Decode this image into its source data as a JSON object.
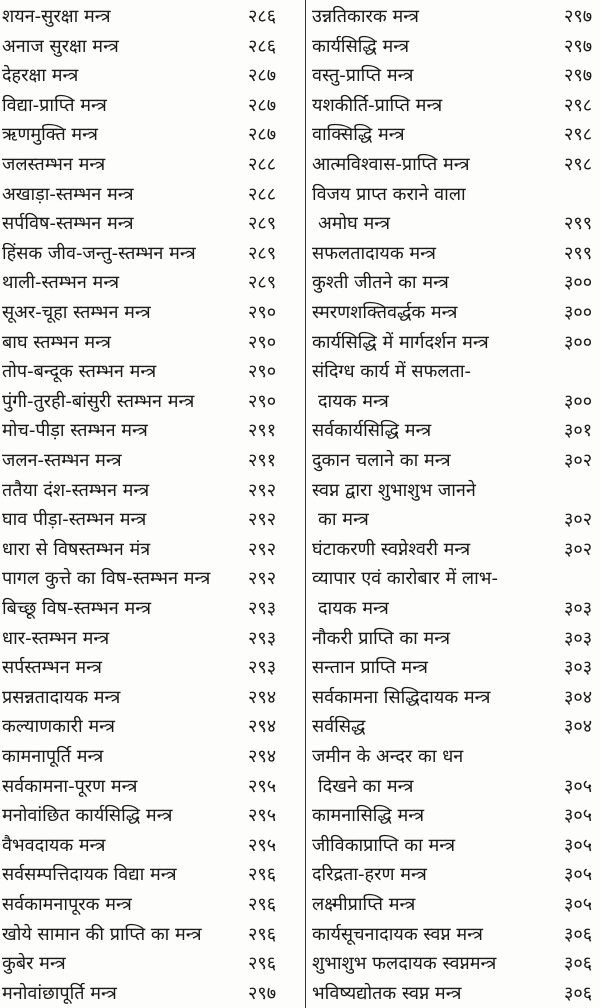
{
  "rows": [
    {
      "left": {
        "text": "शयन-सुरक्षा मन्त्र",
        "page": "२८६"
      },
      "right": {
        "text": "उन्नतिकारक मन्त्र",
        "page": "२९७"
      }
    },
    {
      "left": {
        "text": "अनाज सुरक्षा मन्त्र",
        "page": "२८६"
      },
      "right": {
        "text": "कार्यसिद्धि मन्त्र",
        "page": "२९७"
      }
    },
    {
      "left": {
        "text": "देहरक्षा मन्त्र",
        "page": "२८७"
      },
      "right": {
        "text": "वस्तु-प्राप्ति मन्त्र",
        "page": "२९७"
      }
    },
    {
      "left": {
        "text": "विद्या-प्राप्ति मन्त्र",
        "page": "२८७"
      },
      "right": {
        "text": "यशकीर्ति-प्राप्ति मन्त्र",
        "page": "२९८"
      }
    },
    {
      "left": {
        "text": "ऋणमुक्ति मन्त्र",
        "page": "२८७"
      },
      "right": {
        "text": "वाक्सिद्धि मन्त्र",
        "page": "२९८"
      }
    },
    {
      "left": {
        "text": "जलस्तम्भन मन्त्र",
        "page": "२८८"
      },
      "right": {
        "text": "आत्मविश्वास-प्राप्ति मन्त्र",
        "page": "२९८"
      }
    },
    {
      "left": {
        "text": "अखाड़ा-स्तम्भन मन्त्र",
        "page": "२८८"
      },
      "right": {
        "text": "विजय प्राप्त कराने वाला",
        "page": ""
      }
    },
    {
      "left": {
        "text": "सर्पविष-स्तम्भन मन्त्र",
        "page": "२८९"
      },
      "right": {
        "text": "अमोघ मन्त्र",
        "page": "२९९",
        "cont": true
      }
    },
    {
      "left": {
        "text": "हिंसक जीव-जन्तु-स्तम्भन मन्त्र",
        "page": "२८९"
      },
      "right": {
        "text": "सफलतादायक मन्त्र",
        "page": "२९९"
      }
    },
    {
      "left": {
        "text": "थाली-स्तम्भन मन्त्र",
        "page": "२८९"
      },
      "right": {
        "text": "कुश्ती जीतने का मन्त्र",
        "page": "३००"
      }
    },
    {
      "left": {
        "text": "सूअर-चूहा स्तम्भन मन्त्र",
        "page": "२९०"
      },
      "right": {
        "text": "स्मरणशक्तिवर्द्धक मन्त्र",
        "page": "३००"
      }
    },
    {
      "left": {
        "text": "बाघ स्तम्भन मन्त्र",
        "page": "२९०"
      },
      "right": {
        "text": "कार्यसिद्धि में मार्गदर्शन मन्त्र",
        "page": "३००"
      }
    },
    {
      "left": {
        "text": "तोप-बन्दूक स्तम्भन मन्त्र",
        "page": "२९०"
      },
      "right": {
        "text": "संदिग्ध कार्य में सफलता-",
        "page": ""
      }
    },
    {
      "left": {
        "text": "पुंगी-तुरही-बांसुरी स्तम्भन मन्त्र",
        "page": "२९०"
      },
      "right": {
        "text": "दायक मन्त्र",
        "page": "३००",
        "cont": true
      }
    },
    {
      "left": {
        "text": "मोच-पीड़ा स्तम्भन मन्त्र",
        "page": "२९१"
      },
      "right": {
        "text": "सर्वकार्यसिद्धि मन्त्र",
        "page": "३०१"
      }
    },
    {
      "left": {
        "text": "जलन-स्तम्भन मन्त्र",
        "page": "२९१"
      },
      "right": {
        "text": "दुकान चलाने का मन्त्र",
        "page": "३०२"
      }
    },
    {
      "left": {
        "text": "ततैया दंश-स्तम्भन मन्त्र",
        "page": "२९२"
      },
      "right": {
        "text": "स्वप्न द्वारा शुभाशुभ जानने",
        "page": ""
      }
    },
    {
      "left": {
        "text": "घाव पीड़ा-स्तम्भन मन्त्र",
        "page": "२९२"
      },
      "right": {
        "text": "का मन्त्र",
        "page": "३०२",
        "cont": true
      }
    },
    {
      "left": {
        "text": "धारा से विषस्तम्भन मंत्र",
        "page": "२९२"
      },
      "right": {
        "text": "घंटाकरणी स्वप्नेश्वरी मन्त्र",
        "page": "३०२"
      }
    },
    {
      "left": {
        "text": "पागल कुत्ते का विष-स्तम्भन मन्त्र",
        "page": "२९२"
      },
      "right": {
        "text": "व्यापार एवं कारोबार में लाभ-",
        "page": ""
      }
    },
    {
      "left": {
        "text": "बिच्छू विष-स्तम्भन मन्त्र",
        "page": "२९३"
      },
      "right": {
        "text": "दायक मन्त्र",
        "page": "३०३",
        "cont": true
      }
    },
    {
      "left": {
        "text": "धार-स्तम्भन मन्त्र",
        "page": "२९३"
      },
      "right": {
        "text": "नौकरी प्राप्ति का मन्त्र",
        "page": "३०३"
      }
    },
    {
      "left": {
        "text": "सर्पस्तम्भन मन्त्र",
        "page": "२९३"
      },
      "right": {
        "text": "सन्तान प्राप्ति मन्त्र",
        "page": "३०३"
      }
    },
    {
      "left": {
        "text": "प्रसन्नतादायक मन्त्र",
        "page": "२९४"
      },
      "right": {
        "text": "सर्वकामना सिद्धिदायक मन्त्र",
        "page": "३०४"
      }
    },
    {
      "left": {
        "text": "कल्याणकारी मन्त्र",
        "page": "२९४"
      },
      "right": {
        "text": "सर्वसिद्ध",
        "page": "३०४"
      }
    },
    {
      "left": {
        "text": "कामनापूर्ति मन्त्र",
        "page": "२९४"
      },
      "right": {
        "text": "जमीन के अन्दर का धन",
        "page": ""
      }
    },
    {
      "left": {
        "text": "सर्वकामना-पूरण मन्त्र",
        "page": "२९५"
      },
      "right": {
        "text": "दिखने का मन्त्र",
        "page": "३०५",
        "cont": true
      }
    },
    {
      "left": {
        "text": "मनोवांछित कार्यसिद्धि मन्त्र",
        "page": "२९५"
      },
      "right": {
        "text": "कामनासिद्धि मन्त्र",
        "page": "३०५"
      }
    },
    {
      "left": {
        "text": "वैभवदायक मन्त्र",
        "page": "२९५"
      },
      "right": {
        "text": "जीविकाप्राप्ति का मन्त्र",
        "page": "३०५"
      }
    },
    {
      "left": {
        "text": "सर्वसम्पत्तिदायक विद्या मन्त्र",
        "page": "२९६"
      },
      "right": {
        "text": "दरिद्रता-हरण मन्त्र",
        "page": "३०५"
      }
    },
    {
      "left": {
        "text": "सर्वकामनापूरक मन्त्र",
        "page": "२९६"
      },
      "right": {
        "text": "लक्ष्मीप्राप्ति मन्त्र",
        "page": "३०५"
      }
    },
    {
      "left": {
        "text": "खोये सामान की प्राप्ति का मन्त्र",
        "page": "२९६"
      },
      "right": {
        "text": "कार्यसूचनादायक स्वप्न मन्त्र",
        "page": "३०६"
      }
    },
    {
      "left": {
        "text": "कुबेर मन्त्र",
        "page": "२९६"
      },
      "right": {
        "text": "शुभाशुभ फलदायक स्वप्नमन्त्र",
        "page": "३०६"
      }
    },
    {
      "left": {
        "text": "मनोवांछापूर्ति मन्त्र",
        "page": "२९७"
      },
      "right": {
        "text": "भविष्यद्योतक स्वप्न मन्त्र",
        "page": "३०६"
      }
    }
  ]
}
